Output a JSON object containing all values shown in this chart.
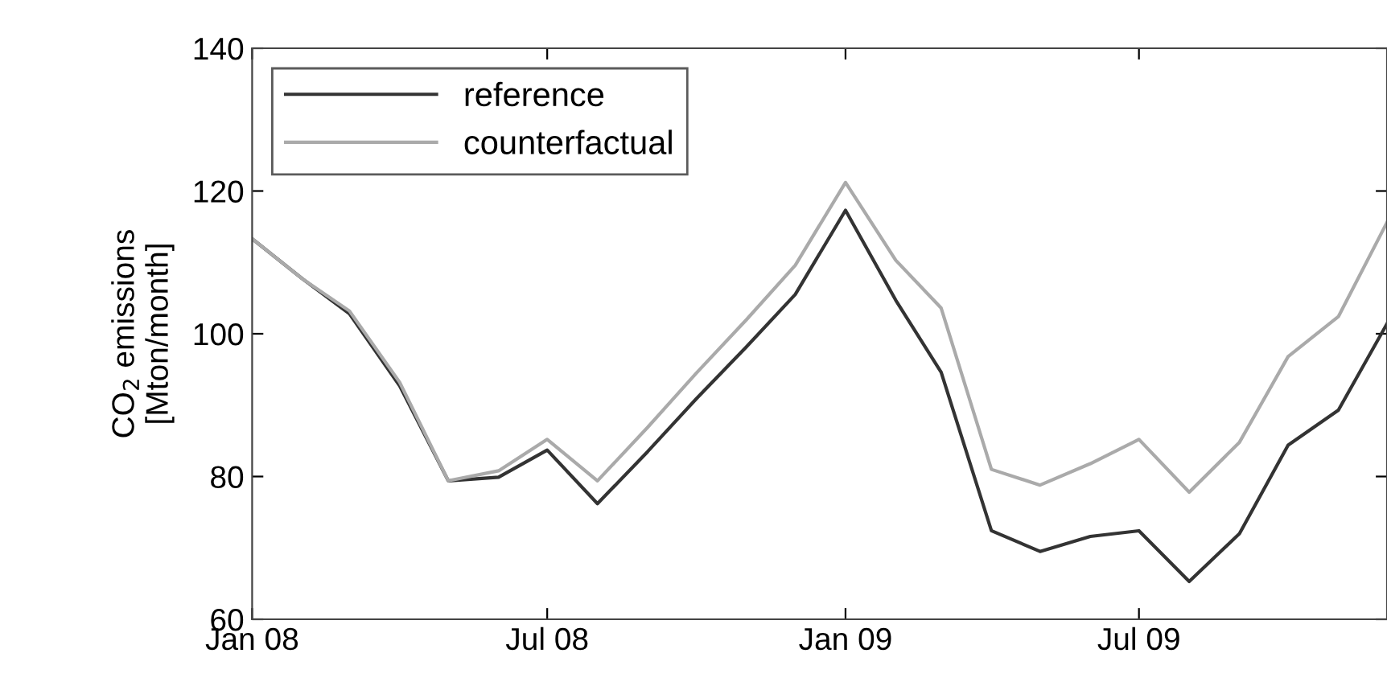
{
  "chart_data": {
    "type": "line",
    "ylabel": "CO$_{2}$ emissions\n[Mton/month]",
    "x": [
      "2008-01",
      "2008-02",
      "2008-03",
      "2008-04",
      "2008-05",
      "2008-06",
      "2008-07",
      "2008-08",
      "2008-09",
      "2008-10",
      "2008-11",
      "2008-12",
      "2009-01",
      "2009-02",
      "2009-03",
      "2009-04",
      "2009-05",
      "2009-06",
      "2009-07",
      "2009-08",
      "2009-09",
      "2009-10",
      "2009-11",
      "2009-12"
    ],
    "series": [
      {
        "name": "reference",
        "color": "#333333",
        "values": [
          113.3,
          107.7,
          102.8,
          92.7,
          79.4,
          79.9,
          83.7,
          76.2,
          83.5,
          90.9,
          98.2,
          105.5,
          117.3,
          104.7,
          94.6,
          72.4,
          69.5,
          71.6,
          72.4,
          65.3,
          72.0,
          84.4,
          89.3,
          101.4
        ]
      },
      {
        "name": "counterfactual",
        "color": "#aaaaaa",
        "values": [
          113.3,
          107.7,
          103.2,
          93.2,
          79.4,
          80.8,
          85.2,
          79.4,
          86.9,
          94.5,
          102.0,
          109.6,
          121.2,
          110.3,
          103.6,
          81.0,
          78.8,
          81.8,
          85.2,
          77.8,
          84.8,
          96.8,
          102.4,
          115.6
        ]
      }
    ],
    "xlim": [
      "2008-01",
      "2009-12"
    ],
    "xticks": [
      {
        "value": "2008-01",
        "label": "Jan 08"
      },
      {
        "value": "2008-07",
        "label": "Jul 08"
      },
      {
        "value": "2009-01",
        "label": "Jan 09"
      },
      {
        "value": "2009-07",
        "label": "Jul 09"
      }
    ],
    "ylim": [
      60,
      140
    ],
    "yticks": [
      60,
      80,
      100,
      120,
      140
    ],
    "legend": "top left",
    "grid": false,
    "line_style": "solid",
    "marker": "none"
  }
}
